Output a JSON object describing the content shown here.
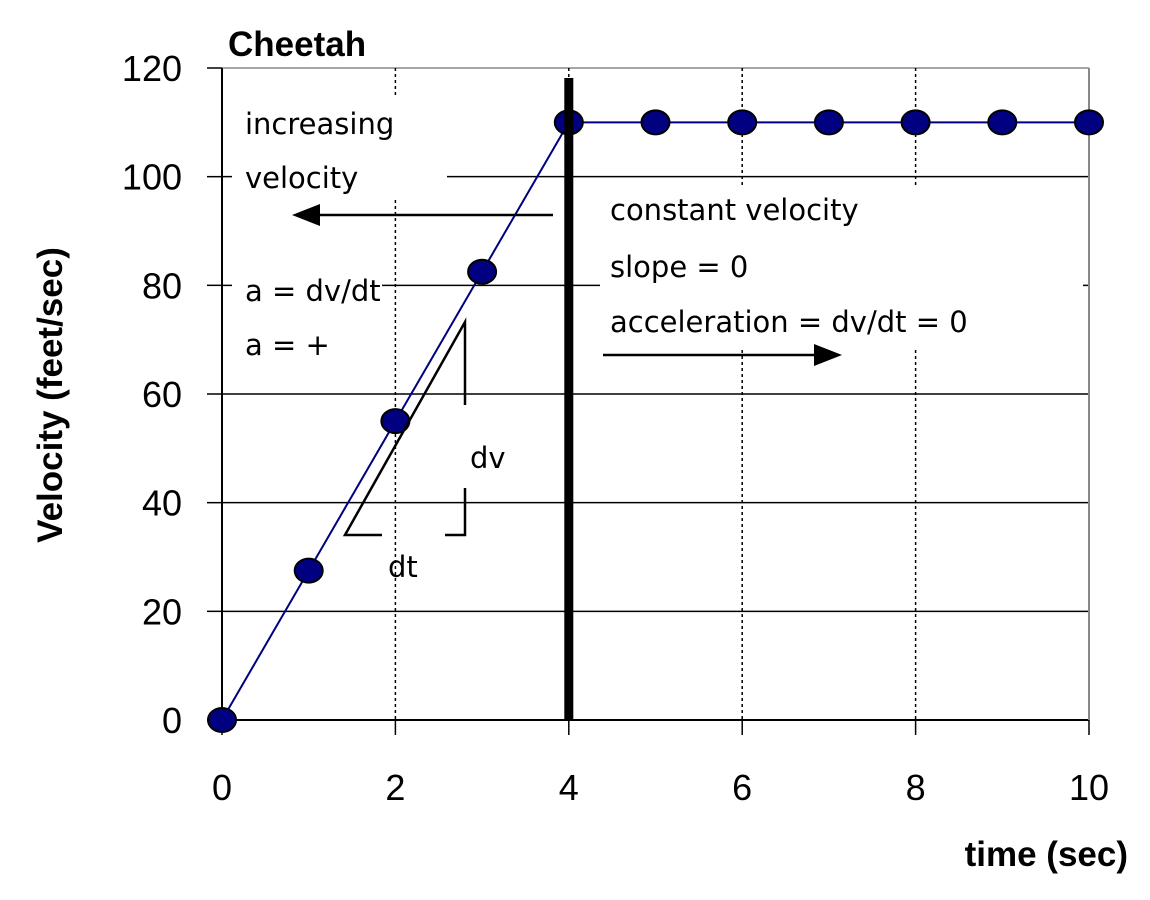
{
  "chart_data": {
    "type": "line",
    "title": "Cheetah",
    "xlabel": "time (sec)",
    "ylabel": "Velocity (feet/sec)",
    "xlim": [
      0,
      10
    ],
    "ylim": [
      0,
      120
    ],
    "xticks": [
      0,
      2,
      4,
      6,
      8,
      10
    ],
    "yticks": [
      0,
      20,
      40,
      60,
      80,
      100,
      120
    ],
    "grid": {
      "horizontal": "solid",
      "vertical": "dotted"
    },
    "series": [
      {
        "x": [
          0,
          1,
          2,
          3,
          4,
          5,
          6,
          7,
          8,
          9,
          10
        ],
        "y": [
          0,
          27.5,
          55,
          82.5,
          110,
          110,
          110,
          110,
          110,
          110,
          110
        ],
        "color": "#000080",
        "marker": "circle"
      }
    ],
    "divider_x": 4,
    "annotations": {
      "left_line1": "increasing",
      "left_line2": "velocity",
      "left_eq1": "a = dv/dt",
      "left_eq2": "a = +",
      "right_line1": "constant velocity",
      "right_line2": "slope = 0",
      "right_line3": "acceleration = dv/dt = 0",
      "dv": "dv",
      "dt": "dt"
    }
  }
}
